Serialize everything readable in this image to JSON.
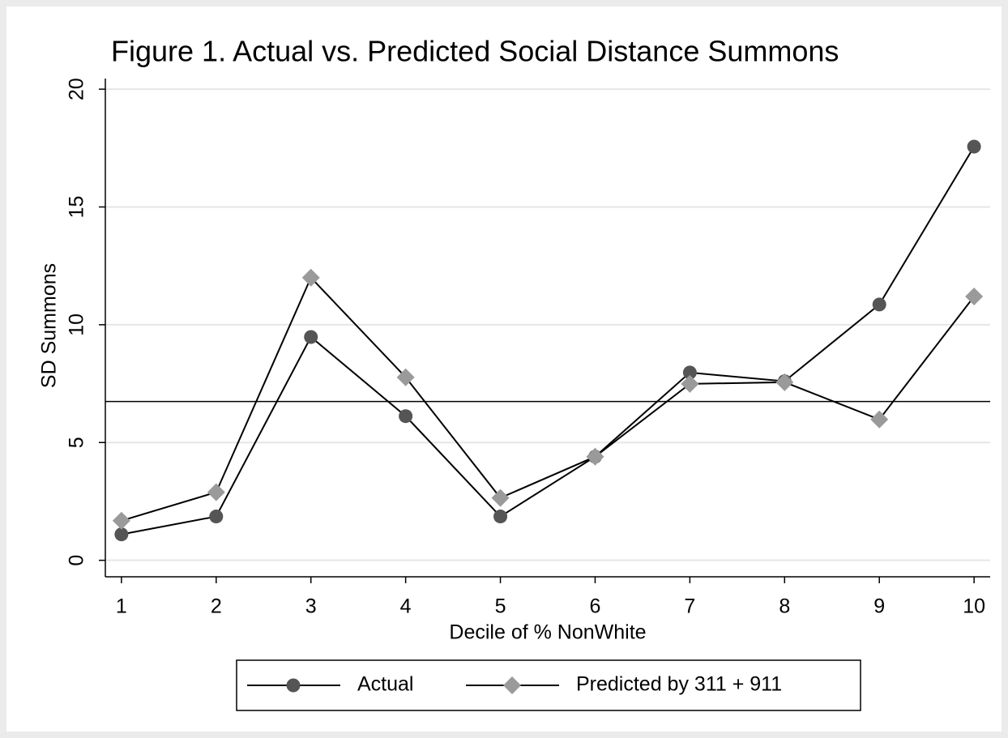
{
  "chart_data": {
    "type": "line",
    "title": "Figure 1. Actual vs. Predicted Social Distance Summons",
    "x_label": "Decile of % NonWhite",
    "y_label": "SD Summons",
    "x": [
      1,
      2,
      3,
      4,
      5,
      6,
      7,
      8,
      9,
      10
    ],
    "series": [
      {
        "name": "Actual",
        "color": "#555555",
        "marker": "circle",
        "values": [
          1.1,
          1.86,
          9.48,
          6.12,
          1.86,
          4.4,
          7.97,
          7.6,
          10.86,
          17.56
        ]
      },
      {
        "name": "Predicted by 311 + 911",
        "color": "#9a9a9a",
        "marker": "diamond",
        "values": [
          1.68,
          2.89,
          12.0,
          7.77,
          2.65,
          4.4,
          7.49,
          7.56,
          5.98,
          11.2
        ]
      }
    ],
    "reference_line": 6.74,
    "xlim": [
      0.83,
      10.17
    ],
    "xticks": [
      1,
      2,
      3,
      4,
      5,
      6,
      7,
      8,
      9,
      10
    ],
    "ylim": [
      -0.7,
      20.45
    ],
    "yticks": [
      0,
      5,
      10,
      15,
      20
    ],
    "grid": true,
    "legend": "bottom"
  }
}
